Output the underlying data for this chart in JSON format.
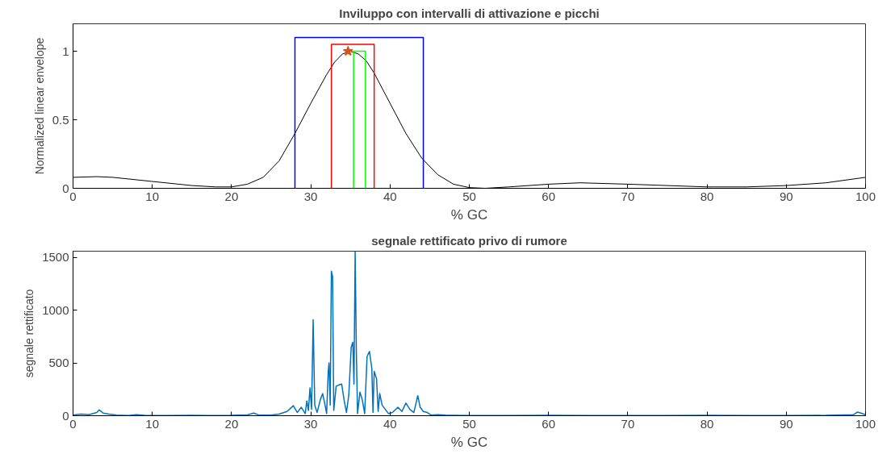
{
  "chart_data": [
    {
      "type": "line",
      "title": "Inviluppo con intervalli di attivazione e picchi",
      "xlabel": "% GC",
      "ylabel": "Normalized linear envelope",
      "xlim": [
        0,
        100
      ],
      "ylim": [
        0,
        1.2
      ],
      "xticks": [
        0,
        10,
        20,
        30,
        40,
        50,
        60,
        70,
        80,
        90,
        100
      ],
      "yticks": [
        0,
        0.5,
        1
      ],
      "series": [
        {
          "color": "#000000",
          "x": [
            0,
            3,
            5,
            10,
            15,
            18,
            20,
            22,
            24,
            26,
            28,
            30,
            32,
            33,
            34,
            35,
            36,
            37,
            38,
            40,
            42,
            44,
            46,
            48,
            50,
            52,
            55,
            60,
            64,
            70,
            75,
            80,
            85,
            90,
            95,
            100
          ],
          "values": [
            0.08,
            0.085,
            0.08,
            0.05,
            0.02,
            0.01,
            0.01,
            0.03,
            0.08,
            0.2,
            0.4,
            0.62,
            0.83,
            0.92,
            0.98,
            1.0,
            0.98,
            0.93,
            0.84,
            0.62,
            0.4,
            0.22,
            0.1,
            0.03,
            0.005,
            0.0,
            0.01,
            0.03,
            0.04,
            0.03,
            0.02,
            0.01,
            0.01,
            0.02,
            0.04,
            0.08
          ]
        },
        {
          "color": "#0000ff",
          "x": [
            28,
            28,
            44.2,
            44.2
          ],
          "values": [
            0,
            1.1,
            1.1,
            0
          ]
        },
        {
          "color": "#ff0000",
          "x": [
            32.6,
            32.6,
            38,
            38
          ],
          "values": [
            0,
            1.05,
            1.05,
            0
          ]
        },
        {
          "color": "#00ff00",
          "x": [
            35.4,
            35.4,
            36.9,
            36.9
          ],
          "values": [
            0,
            1.0,
            1.0,
            0
          ]
        },
        {
          "type": "scatter",
          "marker": "star",
          "color": "#d95319",
          "x": [
            34.7
          ],
          "values": [
            1.0
          ]
        }
      ]
    },
    {
      "type": "line",
      "title": "segnale rettificato privo di rumore",
      "xlabel": "% GC",
      "ylabel": "segnale rettificato",
      "xlim": [
        0,
        100
      ],
      "ylim": [
        0,
        1560
      ],
      "xticks": [
        0,
        10,
        20,
        30,
        40,
        50,
        60,
        70,
        80,
        90,
        100
      ],
      "yticks": [
        0,
        500,
        1000,
        1500
      ],
      "series": [
        {
          "color": "#0072bd",
          "x": [
            0,
            1,
            2,
            3,
            3.3,
            3.8,
            4.5,
            5.5,
            7,
            8,
            9,
            12,
            15,
            18,
            20,
            22,
            22.8,
            23.5,
            25,
            26,
            27,
            27.8,
            28.3,
            28.8,
            29.3,
            29.5,
            29.7,
            29.9,
            30.1,
            30.3,
            30.5,
            30.8,
            31.2,
            31.5,
            31.8,
            32.0,
            32.2,
            32.3,
            32.45,
            32.6,
            32.75,
            32.9,
            33.2,
            33.5,
            33.9,
            34.2,
            34.5,
            34.8,
            35.1,
            35.3,
            35.45,
            35.6,
            35.75,
            35.9,
            36.2,
            36.5,
            36.8,
            37.1,
            37.4,
            37.7,
            37.85,
            38.0,
            38.3,
            38.5,
            38.7,
            39.0,
            39.4,
            39.8,
            40.3,
            41.0,
            41.5,
            42.0,
            42.5,
            43.0,
            43.5,
            43.8,
            44.2,
            44.7,
            45.2,
            46,
            47,
            48,
            50,
            55,
            60,
            65,
            70,
            75,
            80,
            85,
            90,
            95,
            98.5,
            99,
            99.4,
            100
          ],
          "values": [
            5,
            15,
            10,
            30,
            55,
            25,
            15,
            5,
            2,
            10,
            3,
            2,
            3,
            2,
            3,
            8,
            25,
            5,
            5,
            15,
            40,
            95,
            30,
            80,
            20,
            140,
            50,
            263,
            60,
            910,
            100,
            30,
            150,
            210,
            100,
            20,
            420,
            500,
            100,
            1370,
            1320,
            50,
            280,
            290,
            300,
            150,
            30,
            200,
            650,
            697,
            300,
            1560,
            600,
            20,
            223,
            150,
            20,
            560,
            610,
            450,
            30,
            420,
            350,
            40,
            210,
            100,
            60,
            20,
            30,
            80,
            40,
            120,
            60,
            30,
            190,
            80,
            40,
            30,
            5,
            10,
            5,
            3,
            2,
            2,
            3,
            2,
            2,
            2,
            3,
            2,
            2,
            3,
            10,
            35,
            25,
            10
          ]
        }
      ]
    }
  ]
}
